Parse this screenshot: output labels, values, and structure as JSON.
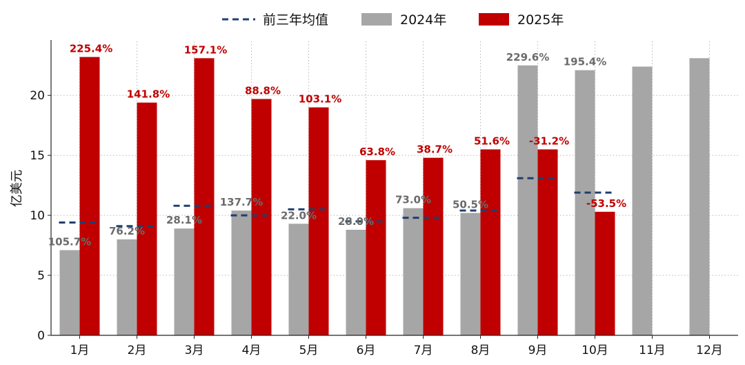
{
  "chart_data": {
    "type": "bar",
    "title": "",
    "xlabel": "",
    "ylabel": "亿美元",
    "ylim": [
      0,
      24.5
    ],
    "yticks": [
      0,
      5,
      10,
      15,
      20
    ],
    "grid": true,
    "legend_position": "top-center",
    "categories": [
      "1月",
      "2月",
      "3月",
      "4月",
      "5月",
      "6月",
      "7月",
      "8月",
      "9月",
      "10月",
      "11月",
      "12月"
    ],
    "series": [
      {
        "name": "2024年",
        "type": "bar",
        "color": "#a6a6a6",
        "label_color": "#6b6b6b",
        "values": [
          7.1,
          8.0,
          8.9,
          10.4,
          9.3,
          8.8,
          10.6,
          10.2,
          22.5,
          22.1,
          22.4,
          23.1
        ],
        "labels": [
          "105.7%",
          "76.2%",
          "28.1%",
          "137.7%",
          "22.0%",
          "28.0%",
          "73.0%",
          "50.5%",
          "229.6%",
          "195.4%",
          "",
          ""
        ]
      },
      {
        "name": "2025年",
        "type": "bar",
        "color": "#c00000",
        "label_color": "#c00000",
        "values": [
          23.2,
          19.4,
          23.1,
          19.7,
          19.0,
          14.6,
          14.8,
          15.5,
          15.5,
          10.3,
          null,
          null
        ],
        "labels": [
          "225.4%",
          "141.8%",
          "157.1%",
          "88.8%",
          "103.1%",
          "63.8%",
          "38.7%",
          "51.6%",
          "-31.2%",
          "-53.5%",
          "",
          ""
        ]
      },
      {
        "name": "前三年均值",
        "type": "line-dashed",
        "color": "#1f3f6e",
        "values": [
          9.4,
          9.1,
          10.8,
          10.0,
          10.5,
          9.5,
          9.8,
          10.4,
          13.1,
          11.9,
          null,
          null
        ]
      }
    ]
  }
}
